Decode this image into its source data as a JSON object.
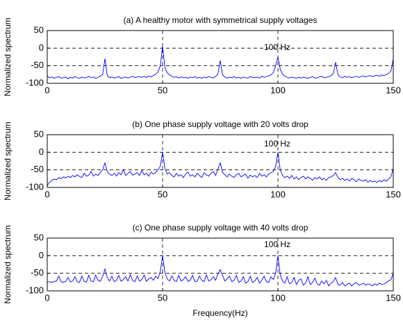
{
  "chart_data": [
    {
      "type": "line",
      "title": "(a) A healthy motor with symmetrical supply voltages",
      "ylabel": "Normalized spectrum",
      "annotation": "100 Hz",
      "color": "#0000ff",
      "xlim": [
        0,
        150
      ],
      "ylim": [
        -100,
        50
      ],
      "xticks": [
        0,
        50,
        100,
        150
      ],
      "yticks": [
        50,
        0,
        -50,
        -100
      ],
      "grid": true,
      "x": [
        0,
        1,
        2,
        3,
        4,
        5,
        6,
        7,
        8,
        9,
        10,
        11,
        12,
        13,
        14,
        15,
        16,
        17,
        18,
        19,
        20,
        21,
        22,
        23,
        24,
        25,
        26,
        27,
        28,
        29,
        30,
        31,
        32,
        33,
        34,
        35,
        36,
        37,
        38,
        39,
        40,
        41,
        42,
        43,
        44,
        45,
        46,
        47,
        48,
        49,
        50,
        51,
        52,
        53,
        54,
        55,
        56,
        57,
        58,
        59,
        60,
        61,
        62,
        63,
        64,
        65,
        66,
        67,
        68,
        69,
        70,
        71,
        72,
        73,
        74,
        75,
        76,
        77,
        78,
        79,
        80,
        81,
        82,
        83,
        84,
        85,
        86,
        87,
        88,
        89,
        90,
        91,
        92,
        93,
        94,
        95,
        96,
        97,
        98,
        99,
        100,
        101,
        102,
        103,
        104,
        105,
        106,
        107,
        108,
        109,
        110,
        111,
        112,
        113,
        114,
        115,
        116,
        117,
        118,
        119,
        120,
        121,
        122,
        123,
        124,
        125,
        126,
        127,
        128,
        129,
        130,
        131,
        132,
        133,
        134,
        135,
        136,
        137,
        138,
        139,
        140,
        141,
        142,
        143,
        144,
        145,
        146,
        147,
        148,
        149,
        150
      ],
      "values": [
        -80,
        -84,
        -82,
        -86,
        -83,
        -81,
        -85,
        -84,
        -82,
        -87,
        -83,
        -85,
        -81,
        -84,
        -86,
        -82,
        -85,
        -83,
        -80,
        -84,
        -82,
        -86,
        -83,
        -80,
        -75,
        -30,
        -78,
        -84,
        -82,
        -85,
        -83,
        -81,
        -86,
        -84,
        -82,
        -85,
        -83,
        -80,
        -84,
        -82,
        -81,
        -83,
        -80,
        -84,
        -79,
        -82,
        -78,
        -74,
        -68,
        -50,
        5,
        -55,
        -70,
        -76,
        -80,
        -83,
        -81,
        -85,
        -82,
        -84,
        -83,
        -86,
        -82,
        -84,
        -81,
        -85,
        -83,
        -86,
        -82,
        -84,
        -81,
        -83,
        -85,
        -80,
        -74,
        -35,
        -76,
        -82,
        -85,
        -83,
        -84,
        -81,
        -85,
        -83,
        -86,
        -82,
        -84,
        -85,
        -81,
        -83,
        -84,
        -82,
        -85,
        -80,
        -83,
        -81,
        -79,
        -76,
        -70,
        -50,
        -25,
        -60,
        -74,
        -80,
        -83,
        -85,
        -82,
        -84,
        -86,
        -83,
        -85,
        -82,
        -84,
        -86,
        -83,
        -81,
        -85,
        -84,
        -82,
        -80,
        -84,
        -83,
        -81,
        -79,
        -72,
        -40,
        -75,
        -82,
        -84,
        -80,
        -83,
        -81,
        -84,
        -82,
        -80,
        -83,
        -81,
        -79,
        -82,
        -80,
        -78,
        -81,
        -79,
        -77,
        -80,
        -76,
        -78,
        -75,
        -72,
        -65,
        -30
      ]
    },
    {
      "type": "line",
      "title": "(b) One phase supply voltage with 20 volts drop",
      "ylabel": "Normalized spectrum",
      "annotation": "100 Hz",
      "color": "#0000ff",
      "xlim": [
        0,
        150
      ],
      "ylim": [
        -100,
        50
      ],
      "xticks": [
        0,
        50,
        100,
        150
      ],
      "yticks": [
        50,
        0,
        -50,
        -100
      ],
      "grid": true,
      "x": [
        0,
        1,
        2,
        3,
        4,
        5,
        6,
        7,
        8,
        9,
        10,
        11,
        12,
        13,
        14,
        15,
        16,
        17,
        18,
        19,
        20,
        21,
        22,
        23,
        24,
        25,
        26,
        27,
        28,
        29,
        30,
        31,
        32,
        33,
        34,
        35,
        36,
        37,
        38,
        39,
        40,
        41,
        42,
        43,
        44,
        45,
        46,
        47,
        48,
        49,
        50,
        51,
        52,
        53,
        54,
        55,
        56,
        57,
        58,
        59,
        60,
        61,
        62,
        63,
        64,
        65,
        66,
        67,
        68,
        69,
        70,
        71,
        72,
        73,
        74,
        75,
        76,
        77,
        78,
        79,
        80,
        81,
        82,
        83,
        84,
        85,
        86,
        87,
        88,
        89,
        90,
        91,
        92,
        93,
        94,
        95,
        96,
        97,
        98,
        99,
        100,
        101,
        102,
        103,
        104,
        105,
        106,
        107,
        108,
        109,
        110,
        111,
        112,
        113,
        114,
        115,
        116,
        117,
        118,
        119,
        120,
        121,
        122,
        123,
        124,
        125,
        126,
        127,
        128,
        129,
        130,
        131,
        132,
        133,
        134,
        135,
        136,
        137,
        138,
        139,
        140,
        141,
        142,
        143,
        144,
        145,
        146,
        147,
        148,
        149,
        150
      ],
      "values": [
        -95,
        -85,
        -80,
        -76,
        -78,
        -72,
        -75,
        -70,
        -73,
        -68,
        -72,
        -66,
        -70,
        -64,
        -69,
        -72,
        -60,
        -68,
        -65,
        -55,
        -68,
        -62,
        -66,
        -58,
        -50,
        -30,
        -55,
        -62,
        -66,
        -60,
        -68,
        -58,
        -64,
        -50,
        -66,
        -60,
        -55,
        -65,
        -62,
        -58,
        -66,
        -52,
        -64,
        -60,
        -68,
        -56,
        -62,
        -58,
        -50,
        -40,
        0,
        -45,
        -62,
        -58,
        -66,
        -70,
        -60,
        -68,
        -64,
        -72,
        -62,
        -56,
        -68,
        -64,
        -70,
        -60,
        -66,
        -72,
        -58,
        -64,
        -68,
        -60,
        -55,
        -66,
        -48,
        -30,
        -58,
        -64,
        -70,
        -62,
        -68,
        -72,
        -64,
        -60,
        -70,
        -66,
        -62,
        -74,
        -65,
        -70,
        -66,
        -72,
        -60,
        -68,
        -64,
        -70,
        -62,
        -58,
        -55,
        -40,
        0,
        -50,
        -66,
        -72,
        -68,
        -74,
        -66,
        -76,
        -70,
        -78,
        -72,
        -68,
        -76,
        -70,
        -74,
        -80,
        -72,
        -76,
        -70,
        -78,
        -74,
        -80,
        -72,
        -70,
        -66,
        -58,
        -72,
        -78,
        -74,
        -80,
        -76,
        -82,
        -74,
        -78,
        -84,
        -76,
        -80,
        -82,
        -78,
        -85,
        -80,
        -84,
        -82,
        -86,
        -80,
        -84,
        -78,
        -82,
        -76,
        -70,
        -45
      ]
    },
    {
      "type": "line",
      "title": "(c) One phase supply voltage with 40 volts drop",
      "ylabel": "Normalized spectrum",
      "xlabel": "Frequency(Hz)",
      "annotation": "100 Hz",
      "color": "#0000ff",
      "xlim": [
        0,
        150
      ],
      "ylim": [
        -100,
        50
      ],
      "xticks": [
        0,
        50,
        100,
        150
      ],
      "yticks": [
        50,
        0,
        -50,
        -100
      ],
      "grid": true,
      "x": [
        0,
        1,
        2,
        3,
        4,
        5,
        6,
        7,
        8,
        9,
        10,
        11,
        12,
        13,
        14,
        15,
        16,
        17,
        18,
        19,
        20,
        21,
        22,
        23,
        24,
        25,
        26,
        27,
        28,
        29,
        30,
        31,
        32,
        33,
        34,
        35,
        36,
        37,
        38,
        39,
        40,
        41,
        42,
        43,
        44,
        45,
        46,
        47,
        48,
        49,
        50,
        51,
        52,
        53,
        54,
        55,
        56,
        57,
        58,
        59,
        60,
        61,
        62,
        63,
        64,
        65,
        66,
        67,
        68,
        69,
        70,
        71,
        72,
        73,
        74,
        75,
        76,
        77,
        78,
        79,
        80,
        81,
        82,
        83,
        84,
        85,
        86,
        87,
        88,
        89,
        90,
        91,
        92,
        93,
        94,
        95,
        96,
        97,
        98,
        99,
        100,
        101,
        102,
        103,
        104,
        105,
        106,
        107,
        108,
        109,
        110,
        111,
        112,
        113,
        114,
        115,
        116,
        117,
        118,
        119,
        120,
        121,
        122,
        123,
        124,
        125,
        126,
        127,
        128,
        129,
        130,
        131,
        132,
        133,
        134,
        135,
        136,
        137,
        138,
        139,
        140,
        141,
        142,
        143,
        144,
        145,
        146,
        147,
        148,
        149,
        150
      ],
      "values": [
        -75,
        -74,
        -76,
        -73,
        -72,
        -58,
        -74,
        -76,
        -73,
        -62,
        -75,
        -72,
        -60,
        -74,
        -76,
        -58,
        -73,
        -75,
        -56,
        -72,
        -74,
        -55,
        -70,
        -73,
        -60,
        -38,
        -62,
        -72,
        -58,
        -74,
        -70,
        -56,
        -73,
        -68,
        -60,
        -72,
        -54,
        -70,
        -74,
        -58,
        -72,
        -68,
        -55,
        -73,
        -66,
        -62,
        -70,
        -58,
        -65,
        -45,
        0,
        -48,
        -66,
        -72,
        -58,
        -70,
        -74,
        -56,
        -72,
        -68,
        -60,
        -73,
        -70,
        -56,
        -74,
        -72,
        -58,
        -70,
        -74,
        -55,
        -72,
        -68,
        -60,
        -70,
        -52,
        -40,
        -56,
        -72,
        -66,
        -58,
        -74,
        -70,
        -56,
        -76,
        -72,
        -60,
        -78,
        -74,
        -58,
        -76,
        -72,
        -62,
        -78,
        -70,
        -58,
        -74,
        -76,
        -60,
        -68,
        -50,
        0,
        -55,
        -72,
        -78,
        -60,
        -80,
        -76,
        -62,
        -82,
        -70,
        -66,
        -84,
        -78,
        -60,
        -82,
        -76,
        -64,
        -80,
        -84,
        -72,
        -80,
        -70,
        -86,
        -78,
        -74,
        -62,
        -82,
        -84,
        -76,
        -86,
        -82,
        -78,
        -86,
        -80,
        -76,
        -84,
        -82,
        -78,
        -84,
        -80,
        -82,
        -86,
        -80,
        -84,
        -78,
        -82,
        -80,
        -76,
        -72,
        -68,
        -50
      ]
    }
  ]
}
